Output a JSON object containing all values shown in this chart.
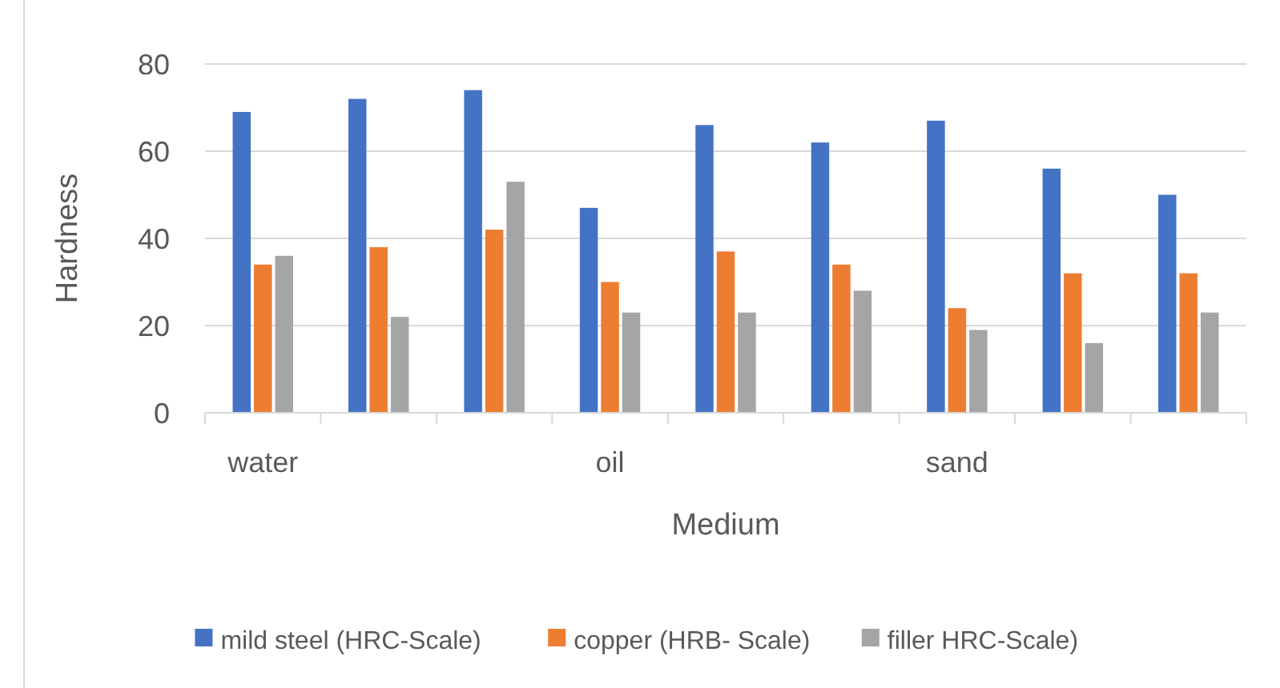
{
  "chart_data": {
    "type": "bar",
    "xlabel": "Medium",
    "ylabel": "Hardness",
    "categories": [
      "water",
      null,
      null,
      "oil",
      null,
      null,
      "sand",
      null,
      null
    ],
    "series": [
      {
        "name": "mild steel (HRC-Scale)",
        "color": "#4472c4",
        "values": [
          69,
          72,
          74,
          47,
          66,
          62,
          67,
          56,
          50
        ]
      },
      {
        "name": "copper (HRB- Scale)",
        "color": "#ed7d31",
        "values": [
          34,
          38,
          42,
          30,
          37,
          34,
          24,
          32,
          32
        ]
      },
      {
        "name": "filler HRC-Scale)",
        "color": "#a5a5a5",
        "values": [
          36,
          22,
          53,
          23,
          23,
          28,
          19,
          16,
          23
        ]
      }
    ],
    "ylim": [
      0,
      80
    ],
    "yticks": [
      0,
      20,
      40,
      60,
      80
    ],
    "grid": "y",
    "legend": "bottom"
  }
}
